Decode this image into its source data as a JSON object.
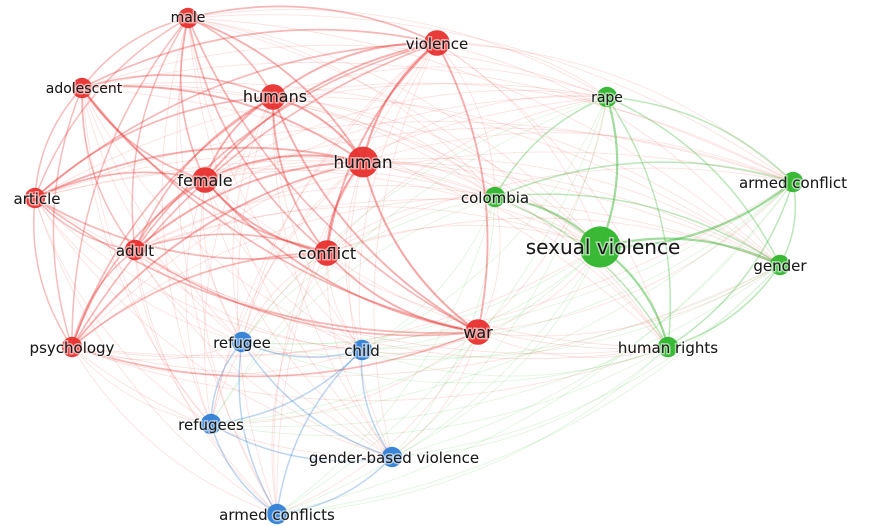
{
  "network": {
    "colors": {
      "red": "#e8302e",
      "green": "#2fb52c",
      "blue": "#2f7fd6"
    },
    "nodes": [
      {
        "id": "male",
        "label": "male",
        "cluster": "red",
        "weight": 2
      },
      {
        "id": "violence",
        "label": "violence",
        "cluster": "red",
        "weight": 3
      },
      {
        "id": "adolescent",
        "label": "adolescent",
        "cluster": "red",
        "weight": 2
      },
      {
        "id": "humans",
        "label": "humans",
        "cluster": "red",
        "weight": 3
      },
      {
        "id": "human",
        "label": "human",
        "cluster": "red",
        "weight": 4
      },
      {
        "id": "female",
        "label": "female",
        "cluster": "red",
        "weight": 3
      },
      {
        "id": "article",
        "label": "article",
        "cluster": "red",
        "weight": 2
      },
      {
        "id": "adult",
        "label": "adult",
        "cluster": "red",
        "weight": 2
      },
      {
        "id": "conflict",
        "label": "conflict",
        "cluster": "red",
        "weight": 3
      },
      {
        "id": "psychology",
        "label": "psychology",
        "cluster": "red",
        "weight": 2
      },
      {
        "id": "war",
        "label": "war",
        "cluster": "red",
        "weight": 3
      },
      {
        "id": "rape",
        "label": "rape",
        "cluster": "green",
        "weight": 2
      },
      {
        "id": "armed-conflict",
        "label": "armed conflict",
        "cluster": "green",
        "weight": 2
      },
      {
        "id": "colombia",
        "label": "colombia",
        "cluster": "green",
        "weight": 2
      },
      {
        "id": "sexual-violence",
        "label": "sexual violence",
        "cluster": "green",
        "weight": 6
      },
      {
        "id": "gender",
        "label": "gender",
        "cluster": "green",
        "weight": 2
      },
      {
        "id": "human-rights",
        "label": "human rights",
        "cluster": "green",
        "weight": 2
      },
      {
        "id": "refugee",
        "label": "refugee",
        "cluster": "blue",
        "weight": 2
      },
      {
        "id": "child",
        "label": "child",
        "cluster": "blue",
        "weight": 2
      },
      {
        "id": "refugees",
        "label": "refugees",
        "cluster": "blue",
        "weight": 2
      },
      {
        "id": "gender-based-violence",
        "label": "gender-based violence",
        "cluster": "blue",
        "weight": 2
      },
      {
        "id": "armed-conflicts",
        "label": "armed conflicts",
        "cluster": "blue",
        "weight": 2
      }
    ]
  }
}
